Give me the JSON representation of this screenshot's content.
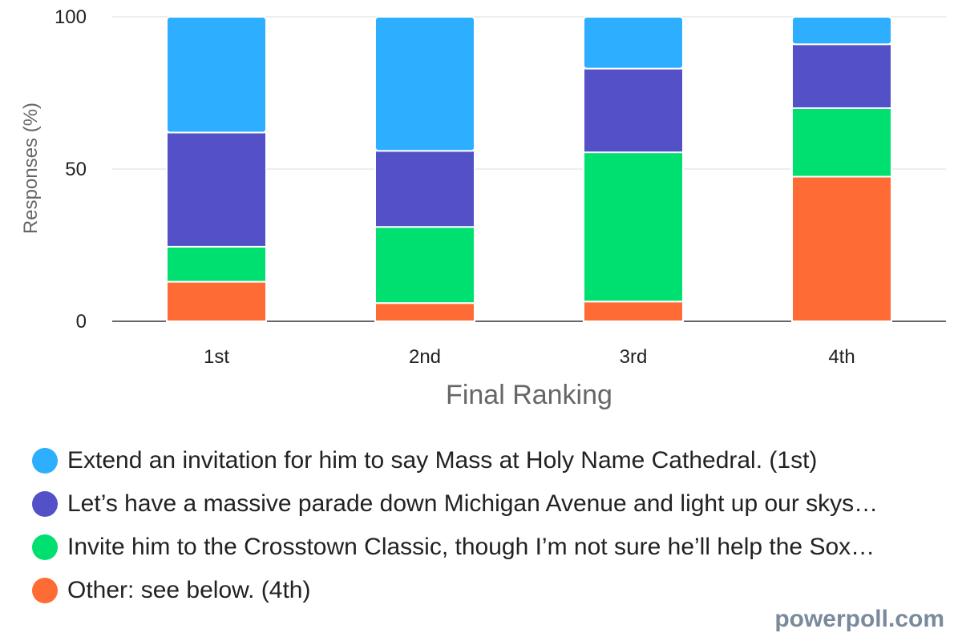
{
  "chart_data": {
    "type": "bar",
    "stacked": true,
    "categories": [
      "1st",
      "2nd",
      "3rd",
      "4th"
    ],
    "series": [
      {
        "name": "Other: see below. (4th)",
        "color": "#ff6b35",
        "values": [
          13,
          6,
          6.5,
          47.5
        ]
      },
      {
        "name": "Invite him to the Crosstown Classic, though I’m not sure he’ll help the Sox…",
        "color": "#00e070",
        "values": [
          11.5,
          25,
          49,
          22.5
        ]
      },
      {
        "name": "Let’s have a massive parade down Michigan Avenue and light up our skys…",
        "color": "#5350c8",
        "values": [
          37.5,
          25,
          27.5,
          21
        ]
      },
      {
        "name": "Extend an invitation for him to say Mass at Holy Name Cathedral. (1st)",
        "color": "#2eaeff",
        "values": [
          38,
          44,
          17,
          9
        ]
      }
    ],
    "xlabel": "Final Ranking",
    "ylabel": "Responses (%)",
    "ylim": [
      0,
      100
    ],
    "yticks": [
      "0",
      "50",
      "100"
    ],
    "grid": true,
    "legend_position": "bottom"
  },
  "legend": [
    {
      "label": "Extend an invitation for him to say Mass at Holy Name Cathedral. (1st)",
      "color": "#2eaeff"
    },
    {
      "label": "Let’s have a massive parade down Michigan Avenue and light up our skys…",
      "color": "#5350c8"
    },
    {
      "label": "Invite him to the Crosstown Classic, though I’m not sure he’ll help the Sox…",
      "color": "#00e070"
    },
    {
      "label": "Other: see below. (4th)",
      "color": "#ff6b35"
    }
  ],
  "brand": "powerpoll.com"
}
